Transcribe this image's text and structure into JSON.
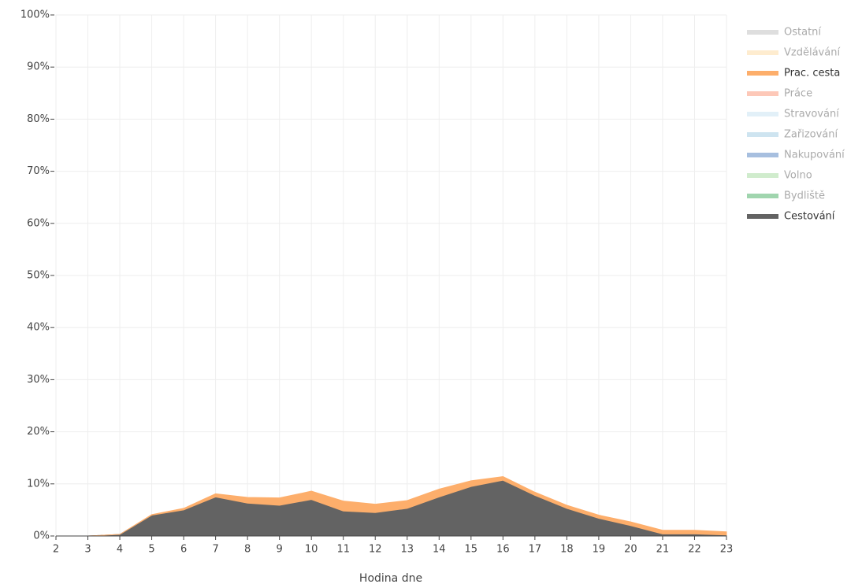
{
  "chart_data": {
    "type": "stacked_area",
    "x_label": "Hodina dne",
    "x": [
      2,
      3,
      4,
      5,
      6,
      7,
      8,
      9,
      10,
      11,
      12,
      13,
      14,
      15,
      16,
      17,
      18,
      19,
      20,
      21,
      22,
      23
    ],
    "xlim": [
      2,
      23
    ],
    "xticks": [
      2,
      3,
      4,
      5,
      6,
      7,
      8,
      9,
      10,
      11,
      12,
      13,
      14,
      15,
      16,
      17,
      18,
      19,
      20,
      21,
      22,
      23
    ],
    "ylim": [
      0,
      100
    ],
    "yticks": [
      {
        "value": 0,
        "label": "0%"
      },
      {
        "value": 10,
        "label": "10%"
      },
      {
        "value": 20,
        "label": "20%"
      },
      {
        "value": 30,
        "label": "30%"
      },
      {
        "value": 40,
        "label": "40%"
      },
      {
        "value": 50,
        "label": "50%"
      },
      {
        "value": 60,
        "label": "60%"
      },
      {
        "value": 70,
        "label": "70%"
      },
      {
        "value": 80,
        "label": "80%"
      },
      {
        "value": 90,
        "label": "90%"
      },
      {
        "value": 100,
        "label": "100%"
      }
    ],
    "grid": true,
    "legend": "top-right",
    "series": [
      {
        "name": "Ostatní",
        "color": "#bdbdbd",
        "visible": false
      },
      {
        "name": "Vzdělávání",
        "color": "#fdd9a0",
        "visible": false
      },
      {
        "name": "Prac. cesta",
        "color": "#fdae6b",
        "visible": true,
        "values": [
          0,
          0,
          0,
          0.1,
          0.3,
          0.6,
          1.1,
          1.4,
          1.6,
          1.9,
          1.6,
          1.5,
          1.5,
          1.1,
          0.7,
          0.6,
          0.6,
          0.6,
          0.7,
          0.7,
          0.7,
          0.6
        ]
      },
      {
        "name": "Práce",
        "color": "#fc9272",
        "visible": false
      },
      {
        "name": "Stravování",
        "color": "#c6e2f2",
        "visible": false
      },
      {
        "name": "Zařizování",
        "color": "#9ecae1",
        "visible": false
      },
      {
        "name": "Nakupování",
        "color": "#4f7fbf",
        "visible": false
      },
      {
        "name": "Volno",
        "color": "#a1d99b",
        "visible": false
      },
      {
        "name": "Bydliště",
        "color": "#41ab5d",
        "visible": false
      },
      {
        "name": "Cestování",
        "color": "#636363",
        "visible": true,
        "values": [
          0,
          0,
          0.3,
          4,
          5,
          7.5,
          6.3,
          5.9,
          7,
          4.8,
          4.5,
          5.3,
          7.5,
          9.5,
          10.7,
          7.8,
          5.3,
          3.4,
          2,
          0.4,
          0.4,
          0.2
        ]
      }
    ]
  }
}
